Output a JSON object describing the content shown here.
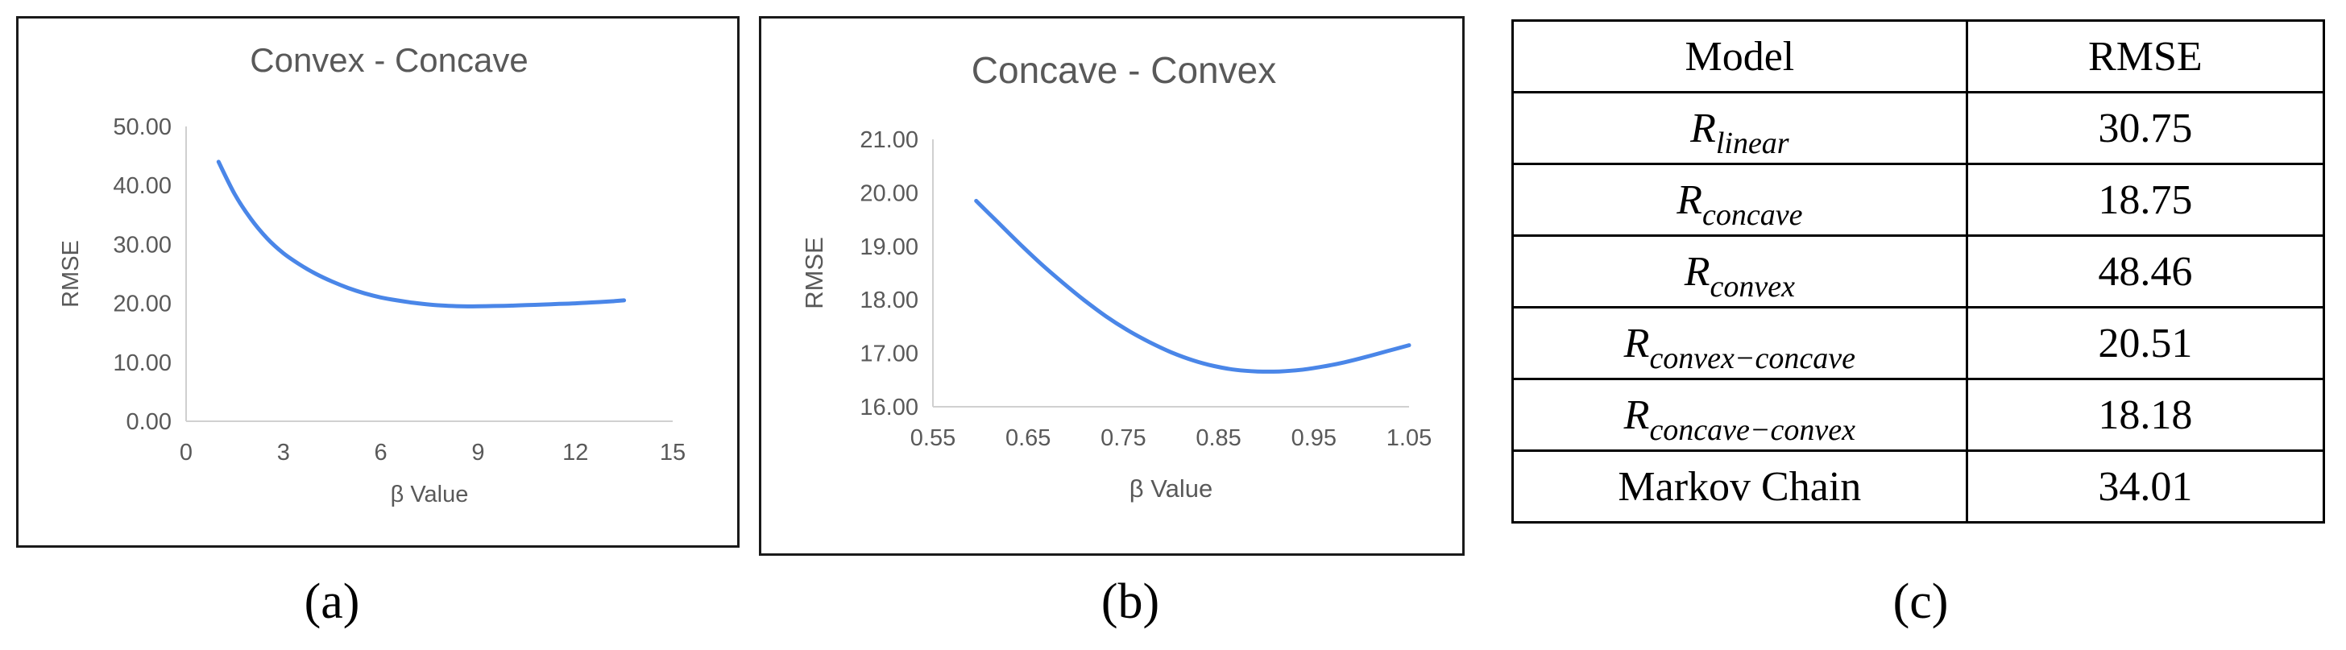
{
  "chart_data": [
    {
      "type": "line",
      "title": "Convex  - Concave",
      "xlabel": "β Value",
      "ylabel": "RMSE",
      "xlim": [
        0,
        15
      ],
      "ylim": [
        0,
        50
      ],
      "xticks": [
        "0",
        "3",
        "6",
        "9",
        "12",
        "15"
      ],
      "yticks": [
        "0.00",
        "10.00",
        "20.00",
        "30.00",
        "40.00",
        "50.00"
      ],
      "grid": false,
      "line_color": "#4a86e8",
      "series": [
        {
          "x": [
            1.0,
            1.5,
            2.0,
            2.5,
            3.0,
            3.5,
            4.0,
            4.5,
            5.0,
            5.5,
            6.0,
            6.5,
            7.0,
            7.5,
            8.0,
            8.5,
            9.0,
            9.5,
            10.0,
            10.5,
            11.0,
            11.5,
            12.0,
            12.5,
            13.0,
            13.5
          ],
          "y": [
            44.0,
            38.5,
            34.3,
            31.0,
            28.5,
            26.6,
            25.0,
            23.7,
            22.6,
            21.7,
            21.0,
            20.5,
            20.1,
            19.8,
            19.6,
            19.5,
            19.5,
            19.55,
            19.6,
            19.7,
            19.8,
            19.9,
            20.0,
            20.15,
            20.3,
            20.5
          ]
        }
      ]
    },
    {
      "type": "line",
      "title": "Concave - Convex",
      "xlabel": "β Value",
      "ylabel": "RMSE",
      "xlim": [
        0.55,
        1.1
      ],
      "ylim": [
        16,
        21
      ],
      "xticks": [
        "0.55",
        "0.65",
        "0.75",
        "0.85",
        "0.95",
        "1.05"
      ],
      "yticks": [
        "16.00",
        "17.00",
        "18.00",
        "19.00",
        "20.00",
        "21.00"
      ],
      "grid": false,
      "line_color": "#4a86e8",
      "series": [
        {
          "x": [
            0.6,
            0.625,
            0.65,
            0.675,
            0.7,
            0.725,
            0.75,
            0.775,
            0.8,
            0.825,
            0.85,
            0.875,
            0.9,
            0.925,
            0.95,
            0.975,
            1.0,
            1.025,
            1.05,
            1.075,
            1.1
          ],
          "y": [
            19.85,
            19.45,
            19.05,
            18.67,
            18.32,
            17.99,
            17.69,
            17.43,
            17.21,
            17.02,
            16.87,
            16.76,
            16.69,
            16.66,
            16.66,
            16.69,
            16.75,
            16.83,
            16.93,
            17.04,
            17.15
          ]
        }
      ]
    },
    {
      "type": "table",
      "columns": [
        "Model",
        "RMSE"
      ],
      "rows": [
        {
          "model": "R",
          "sub": "linear",
          "rmse": "30.75",
          "bold": false
        },
        {
          "model": "R",
          "sub": "concave",
          "rmse": "18.75",
          "bold": false
        },
        {
          "model": "R",
          "sub": "convex",
          "rmse": "48.46",
          "bold": false
        },
        {
          "model": "R",
          "sub": "convex−concave",
          "rmse": "20.51",
          "bold": false
        },
        {
          "model": "R",
          "sub": "concave−convex",
          "rmse": "18.18",
          "bold": true
        },
        {
          "model": "Markov Chain",
          "sub": "",
          "rmse": "34.01",
          "bold": false
        }
      ]
    }
  ],
  "captions": {
    "a": "(a)",
    "b": "(b)",
    "c": "(c)"
  }
}
